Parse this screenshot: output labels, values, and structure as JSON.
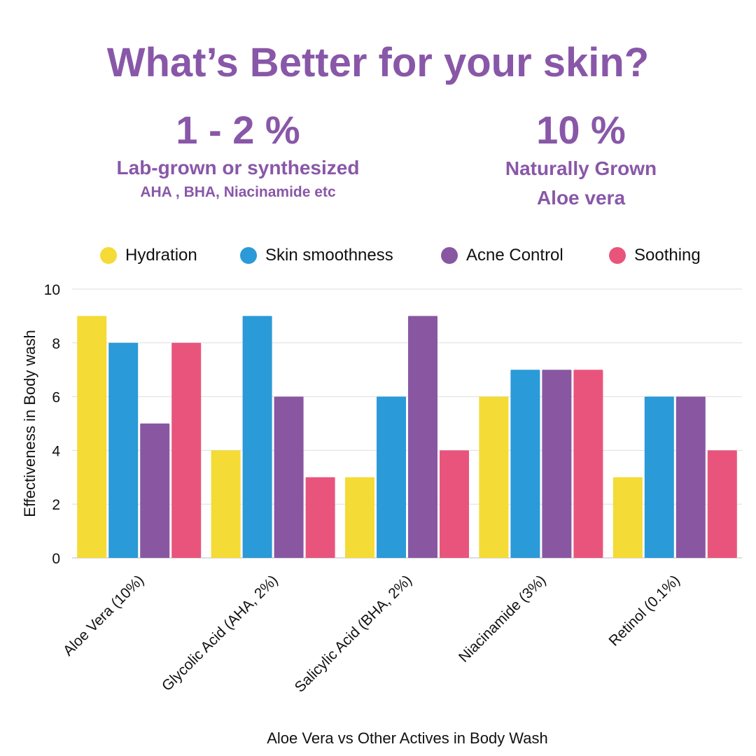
{
  "title": "What’s Better for your skin?",
  "left_stat": {
    "value": "1 - 2 %",
    "line1": "Lab-grown or synthesized",
    "line2": "AHA , BHA, Niacinamide etc"
  },
  "right_stat": {
    "value": "10 %",
    "line1": "Naturally Grown",
    "line2": "Aloe vera"
  },
  "chart_data": {
    "type": "bar",
    "categories": [
      "Aloe Vera (10%)",
      "Glycolic Acid (AHA, 2%)",
      "Salicylic Acid (BHA, 2%)",
      "Niacinamide (3%)",
      "Retinol (0.1%)"
    ],
    "series": [
      {
        "name": "Hydration",
        "color": "#f4db36",
        "values": [
          9,
          4,
          3,
          6,
          3
        ]
      },
      {
        "name": "Skin smoothness",
        "color": "#2a9ad8",
        "values": [
          8,
          9,
          6,
          7,
          6
        ]
      },
      {
        "name": "Acne Control",
        "color": "#8957a2",
        "values": [
          5,
          6,
          9,
          7,
          6
        ]
      },
      {
        "name": "Soothing",
        "color": "#e9547c",
        "values": [
          8,
          3,
          4,
          7,
          4
        ]
      }
    ],
    "xlabel": "Aloe Vera vs Other Actives in Body Wash",
    "ylabel": "Effectiveness in Body wash",
    "ylim": [
      0,
      10
    ],
    "yticks": [
      0,
      2,
      4,
      6,
      8,
      10
    ],
    "legend_position": "top",
    "grid": true
  }
}
